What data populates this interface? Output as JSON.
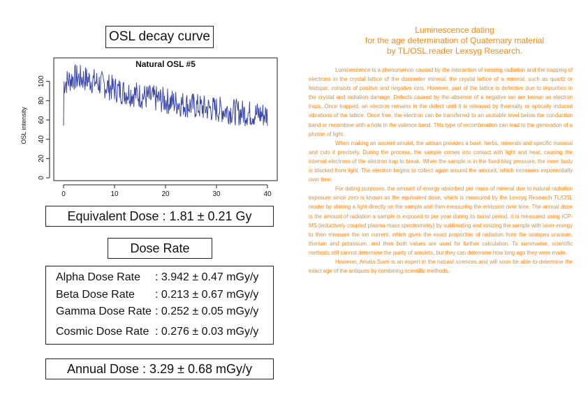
{
  "left": {
    "title": "OSL decay curve",
    "equivalent_dose": "Equivalent Dose : 1.81 ± 0.21 Gy",
    "dose_rate_title": "Dose Rate",
    "rates": [
      {
        "label": "Alpha Dose Rate",
        "value": ": 3.942 ± 0.47 mGy/y"
      },
      {
        "label": "Beta Dose Rate",
        "value": ": 0.213 ± 0.67 mGy/y"
      },
      {
        "label": "Gamma Dose Rate",
        "value": ": 0.252 ± 0.05 mGy/y"
      },
      {
        "label": "Cosmic Dose Rate",
        "value": ": 0.276 ± 0.03 mGy/y"
      }
    ],
    "annual_dose": "Annual Dose : 3.29 ± 0.68 mGy/y"
  },
  "chart_data": {
    "type": "line",
    "title": "Natural OSL #5",
    "xlabel": "",
    "ylabel": "OSL intensity",
    "xlim": [
      0,
      40
    ],
    "ylim": [
      0,
      120
    ],
    "x_ticks": [
      0,
      10,
      20,
      30,
      40
    ],
    "y_ticks": [
      0,
      20,
      40,
      60,
      80,
      100
    ],
    "grid": false,
    "color": "#3b48a8",
    "x": [
      0,
      2,
      4,
      6,
      8,
      10,
      12,
      14,
      16,
      18,
      20,
      22,
      24,
      26,
      28,
      30,
      32,
      34,
      36,
      38,
      40
    ],
    "y": [
      98,
      104,
      103,
      100,
      96,
      92,
      89,
      87,
      84,
      82,
      80,
      78,
      76,
      74,
      72,
      71,
      70,
      68,
      67,
      66,
      65
    ]
  },
  "right": {
    "heading": [
      "Luminescence dating",
      "for the age determination of Quaternary material",
      "by TL/OSL reader Lexsyg Research."
    ],
    "paragraphs": [
      "Luminescence is a phenomenon caused by the interaction of ionising radiation and the trapping of electrons in the crystal lattice of the dosimeter mineral. the crystal lattice of a mineral, such as quartz or feldspar, consists of positive and negative ions. However, part of the lattice is defective due to impurities in the crystal and radiation damage. Defects caused by the absence of a negative ion are known as electron traps. Once trapped, an electron remains in the defect until it is released by thermally or optically induced vibrations of the lattice. Once free, the electron can be transferred to an unstable level below the conduction band or recombine with a hole in the valence band. This type of recombination can lead to the generation of a photon of light.",
      "When making an ancient amulet, the artisan provides a bowl, herbs, minerals and specific material and cuts it precisely. During the process, the sample comes into contact with light and heat, causing the internal electrons of the electron trap to break. When the sample is in the fixed blog pressure, the inner body is blocked from light. The electron begins to collect again around the amount, which increases exponentially over time.",
      "For dating purposes, the amount of energy absorbed per mass of mineral due to natural radiation exposure since zero is known as the equivalent dose, which is measured by the Lexsyg Research TL/OSL reader by shining a light directly on the sample and then measuring the emission over time. The annual dose is the amount of radiation a sample is exposed to per year during its burial period. It is measured using ICP-MS (inductively coupled plasma mass spectrometry) by sublimating and ionizing the sample with laser energy to then measure the ion current, which gives the exact proportion of radiation from the isotopes uranium, thorium and potassium, and then both values are used for further calculation. To summarise, scientific methods still cannot determine the purity of amulets, but they can determine how long ago they were made.",
      "However, Amata Siam is an expert in the natural sciences and will soon be able to determine the exact age of the antiques by combining scientific methods."
    ]
  }
}
